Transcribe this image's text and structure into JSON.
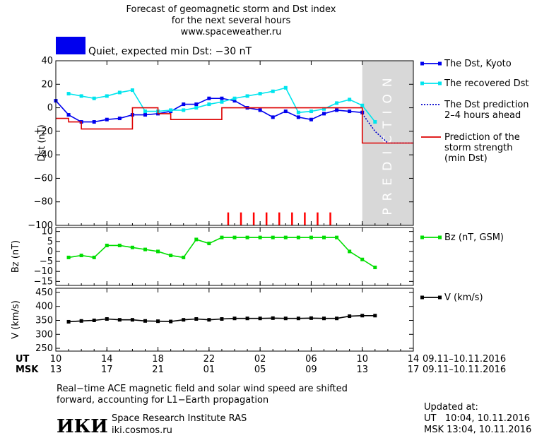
{
  "header": {
    "title_line1": "Forecast of geomagnetic storm and Dst index",
    "title_line2": "for the next several hours",
    "site": "www.spaceweather.ru",
    "status": "Quiet, expected min Dst: −30 nT",
    "status_color": "#0000ee"
  },
  "chart_data": [
    {
      "type": "line",
      "name": "dst-panel",
      "ylabel": "Dst (nT)",
      "ylim": [
        -100,
        40
      ],
      "yticks": [
        40,
        20,
        0,
        -20,
        -40,
        -60,
        -80,
        -100
      ],
      "xlim": [
        10,
        38
      ],
      "prediction_region": {
        "from": 34,
        "to": 38,
        "label": "PREDICTION",
        "color": "#d8d8d8"
      },
      "series": [
        {
          "name": "The Dst, Kyoto",
          "color": "#0000ee",
          "marker": "square",
          "x": [
            10,
            11,
            12,
            13,
            14,
            15,
            16,
            17,
            18,
            19,
            20,
            21,
            22,
            23,
            24,
            25,
            26,
            27,
            28,
            29,
            30,
            31,
            32,
            33,
            34
          ],
          "y": [
            6,
            -6,
            -12,
            -12,
            -10,
            -9,
            -6,
            -6,
            -5,
            -3,
            3,
            3,
            8,
            8,
            6,
            0,
            -2,
            -8,
            -3,
            -8,
            -10,
            -5,
            -2,
            -3,
            -4
          ]
        },
        {
          "name": "The recovered Dst",
          "color": "#00e5ee",
          "marker": "square",
          "x": [
            11,
            12,
            13,
            14,
            15,
            16,
            17,
            18,
            19,
            20,
            21,
            22,
            23,
            24,
            25,
            26,
            27,
            28,
            29,
            30,
            31,
            32,
            33,
            34,
            35
          ],
          "y": [
            12,
            10,
            8,
            10,
            13,
            15,
            -3,
            -3,
            -2,
            -2,
            0,
            3,
            5,
            8,
            10,
            12,
            14,
            17,
            -4,
            -3,
            -1,
            4,
            7,
            2,
            -12
          ]
        },
        {
          "name": "The Dst prediction 2–4 hours ahead",
          "color": "#0000cc",
          "style": "dotted",
          "x": [
            34,
            35,
            36,
            37,
            38
          ],
          "y": [
            -5,
            -20,
            -30,
            -30,
            -30
          ]
        },
        {
          "name": "Prediction of the storm strength (min Dst)",
          "color": "#dd0000",
          "style": "step",
          "x": [
            10,
            11,
            12,
            13,
            14,
            15,
            16,
            17,
            18,
            19,
            20,
            21,
            22,
            23,
            24,
            25,
            26,
            27,
            28,
            29,
            30,
            31,
            32,
            33,
            34,
            38
          ],
          "y": [
            -9,
            -12,
            -18,
            -18,
            -18,
            -18,
            0,
            0,
            -5,
            -10,
            -10,
            -10,
            -10,
            0,
            0,
            0,
            0,
            0,
            0,
            0,
            0,
            0,
            0,
            0,
            -30,
            -30
          ]
        }
      ],
      "event_marks": {
        "color": "#ff0000",
        "x": [
          23.5,
          24.5,
          25.5,
          26.5,
          27.5,
          28.5,
          29.5,
          30.5,
          31.5
        ]
      },
      "legend": [
        {
          "label1": "The Dst, Kyoto",
          "label2": "",
          "label3": "",
          "color": "#0000ee",
          "style": "marker"
        },
        {
          "label1": "The recovered Dst",
          "label2": "",
          "label3": "",
          "color": "#00e5ee",
          "style": "marker"
        },
        {
          "label1": "The Dst prediction",
          "label2": "2–4 hours ahead",
          "label3": "",
          "color": "#0000cc",
          "style": "dotted"
        },
        {
          "label1": "Prediction of the",
          "label2": "storm strength",
          "label3": "(min Dst)",
          "color": "#dd0000",
          "style": "line"
        }
      ]
    },
    {
      "type": "line",
      "name": "bz-panel",
      "ylabel": "Bz (nT)",
      "ylim": [
        -17,
        12
      ],
      "yticks": [
        10,
        5,
        0,
        -5,
        -10,
        -15
      ],
      "xlim": [
        10,
        38
      ],
      "series": [
        {
          "name": "Bz (nT, GSM)",
          "color": "#00dd00",
          "x": [
            11,
            12,
            13,
            14,
            15,
            16,
            17,
            18,
            19,
            20,
            21,
            22,
            23,
            24,
            25,
            26,
            27,
            28,
            29,
            30,
            31,
            32,
            33,
            34,
            35
          ],
          "y": [
            -3,
            -2,
            -3,
            3,
            3,
            2,
            1,
            0,
            -2,
            -3,
            6,
            4,
            7,
            7,
            7,
            7,
            7,
            7,
            7,
            7,
            7,
            7,
            0,
            -4,
            -8
          ]
        }
      ],
      "legend": [
        {
          "label1": "Bz (nT, GSM)",
          "label2": "",
          "label3": "",
          "color": "#00dd00",
          "style": "marker"
        }
      ]
    },
    {
      "type": "line",
      "name": "v-panel",
      "ylabel": "V (km/s)",
      "ylim": [
        240,
        465
      ],
      "yticks": [
        450,
        400,
        350,
        300,
        250
      ],
      "xlim": [
        10,
        38
      ],
      "series": [
        {
          "name": "V (km/s)",
          "color": "#000000",
          "x": [
            11,
            12,
            13,
            14,
            15,
            16,
            17,
            18,
            19,
            20,
            21,
            22,
            23,
            24,
            25,
            26,
            27,
            28,
            29,
            30,
            31,
            32,
            33,
            34,
            35
          ],
          "y": [
            345,
            348,
            350,
            355,
            352,
            352,
            348,
            347,
            346,
            352,
            355,
            352,
            355,
            357,
            357,
            357,
            358,
            357,
            357,
            358,
            357,
            357,
            365,
            367,
            367
          ]
        }
      ],
      "legend": [
        {
          "label1": "V (km/s)",
          "label2": "",
          "label3": "",
          "color": "#000000",
          "style": "marker"
        }
      ]
    }
  ],
  "axis": {
    "ut_label": "UT",
    "msk_label": "MSK",
    "ticks": [
      {
        "x": 10,
        "ut": "10",
        "msk": "13"
      },
      {
        "x": 14,
        "ut": "14",
        "msk": "17"
      },
      {
        "x": 18,
        "ut": "18",
        "msk": "21"
      },
      {
        "x": 22,
        "ut": "22",
        "msk": "01"
      },
      {
        "x": 26,
        "ut": "02",
        "msk": "05"
      },
      {
        "x": 30,
        "ut": "06",
        "msk": "09"
      },
      {
        "x": 34,
        "ut": "10",
        "msk": "13"
      },
      {
        "x": 38,
        "ut": "14",
        "msk": "17"
      }
    ],
    "ut_range": "09.11–10.11.2016",
    "msk_range": "09.11–10.11.2016"
  },
  "footer": {
    "note_line1": "Real−time ACE magnetic field and solar wind speed are shifted",
    "note_line2": "forward, accounting for L1−Earth propagation",
    "logo_text": "ИКИ",
    "institute": "Space Research Institute RAS",
    "site": "iki.cosmos.ru",
    "updated_label": "Updated at:",
    "updated_ut": "UT   10:04, 10.11.2016",
    "updated_msk": "MSK 13:04, 10.11.2016"
  }
}
